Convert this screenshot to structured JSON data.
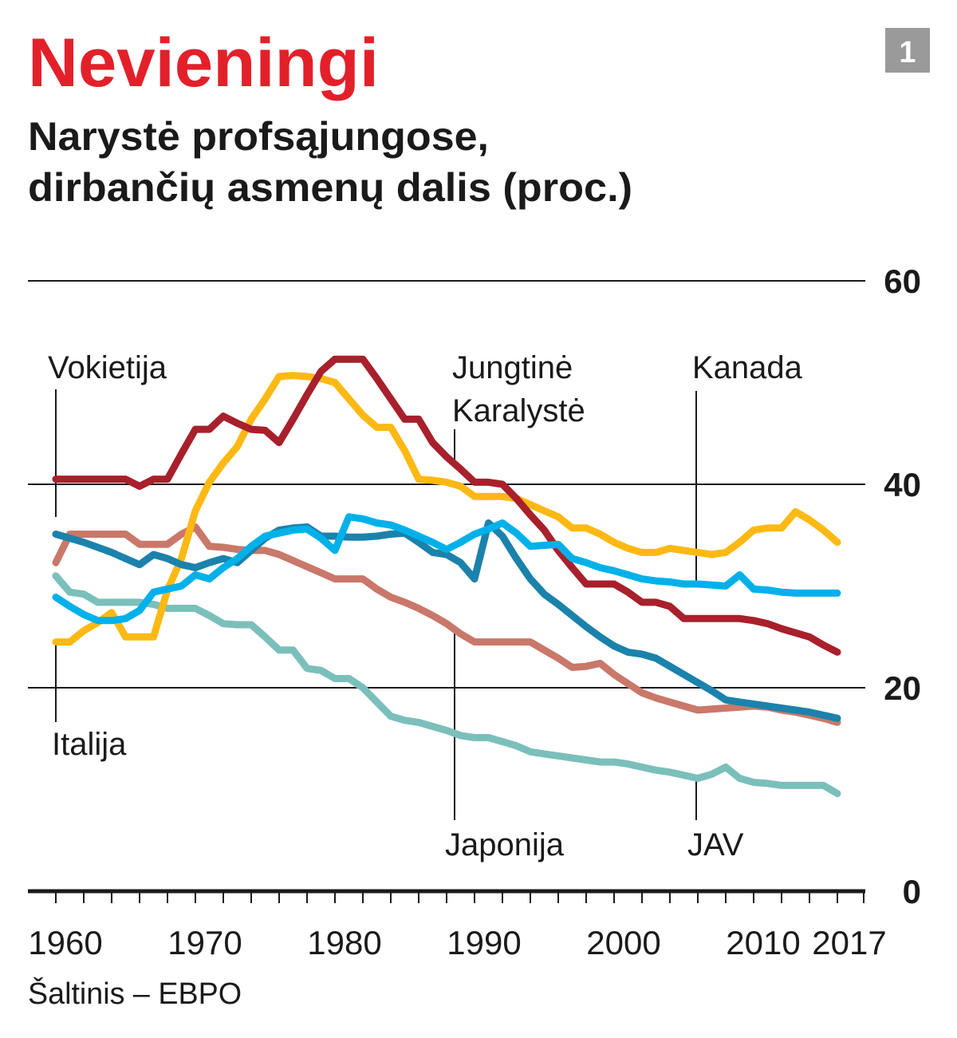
{
  "title": "Nevieningi",
  "subtitle_line1": "Narystė profsąjungose,",
  "subtitle_line2": "dirbančių asmenų dalis (proc.)",
  "badge": "1",
  "source": "Šaltinis – EBPO",
  "colors": {
    "title": "#e3202a",
    "badge_bg": "#9a9a9a"
  },
  "chart_data": {
    "type": "line",
    "title": "Narystė profsąjungose, dirbančių asmenų dalis (proc.)",
    "xlabel": "",
    "ylabel": "",
    "xlim": [
      1960,
      2017
    ],
    "ylim": [
      0,
      60
    ],
    "grid": true,
    "x_start": 1960,
    "x_tick_labels": [
      "1960",
      "1970",
      "1980",
      "1990",
      "2000",
      "2010",
      "2017"
    ],
    "y_tick_labels": [
      "60",
      "40",
      "20",
      "0"
    ],
    "y_ticks": [
      60,
      40,
      20,
      0
    ],
    "series": [
      {
        "name": "Jungtinė Karalystė",
        "label_lines": [
          "Jungtinė",
          "Karalystė"
        ],
        "color": "#a8202b",
        "values": [
          40.5,
          40.5,
          40.5,
          40.5,
          40.5,
          40.5,
          39.8,
          40.5,
          40.5,
          43.0,
          45.4,
          45.4,
          46.7,
          46.0,
          45.4,
          45.3,
          44.1,
          46.4,
          48.8,
          51.1,
          52.3,
          52.3,
          52.3,
          50.4,
          48.4,
          46.4,
          46.4,
          44.1,
          42.7,
          41.5,
          40.2,
          40.2,
          40.0,
          38.6,
          37.0,
          35.5,
          33.5,
          31.8,
          30.2,
          30.2,
          30.2,
          29.4,
          28.4,
          28.4,
          28.0,
          26.8,
          26.8,
          26.8,
          26.8,
          26.8,
          26.6,
          26.3,
          25.8,
          25.4,
          25.0,
          24.2,
          23.5
        ]
      },
      {
        "name": "Italija",
        "label_lines": [
          "Italija"
        ],
        "color": "#fdb913",
        "values": [
          24.5,
          24.5,
          25.6,
          26.4,
          27.4,
          25.0,
          25.0,
          25.0,
          29.6,
          32.7,
          37.4,
          40.2,
          42.1,
          43.7,
          46.4,
          48.4,
          50.6,
          50.7,
          50.6,
          50.4,
          50.0,
          48.4,
          46.8,
          45.6,
          45.6,
          43.3,
          40.5,
          40.4,
          40.2,
          39.8,
          38.8,
          38.8,
          38.8,
          38.6,
          38.0,
          37.4,
          36.8,
          35.7,
          35.7,
          35.1,
          34.3,
          33.7,
          33.3,
          33.3,
          33.7,
          33.5,
          33.3,
          33.1,
          33.3,
          34.3,
          35.5,
          35.7,
          35.7,
          37.3,
          36.5,
          35.5,
          34.3
        ]
      },
      {
        "name": "Vokietija",
        "label_lines": [
          "Vokietija"
        ],
        "color": "#1b82ab",
        "values": [
          35.1,
          34.7,
          34.3,
          33.8,
          33.3,
          32.7,
          32.1,
          33.1,
          32.7,
          32.1,
          31.8,
          32.3,
          32.7,
          32.3,
          33.5,
          34.7,
          35.5,
          35.7,
          35.8,
          34.9,
          34.9,
          34.8,
          34.8,
          34.9,
          35.1,
          35.2,
          34.3,
          33.3,
          33.1,
          32.3,
          30.7,
          36.2,
          34.9,
          32.7,
          30.7,
          29.2,
          28.2,
          27.1,
          26.0,
          25.0,
          24.1,
          23.5,
          23.3,
          22.9,
          22.1,
          21.3,
          20.5,
          19.7,
          18.8,
          18.6,
          18.4,
          18.2,
          18.0,
          17.8,
          17.6,
          17.3,
          17.0
        ]
      },
      {
        "name": "Kanada",
        "label_lines": [
          "Kanada"
        ],
        "color": "#00b1e9",
        "values": [
          28.9,
          28.0,
          27.2,
          26.6,
          26.6,
          26.8,
          27.6,
          29.4,
          29.7,
          30.0,
          31.1,
          30.7,
          31.8,
          32.7,
          33.9,
          34.9,
          35.2,
          35.5,
          35.6,
          34.7,
          33.5,
          36.8,
          36.6,
          36.2,
          36.0,
          35.5,
          34.9,
          34.3,
          33.6,
          34.3,
          35.1,
          35.6,
          36.2,
          35.2,
          33.9,
          34.0,
          34.1,
          32.7,
          32.3,
          31.8,
          31.5,
          31.1,
          30.7,
          30.5,
          30.4,
          30.2,
          30.2,
          30.1,
          30.0,
          31.1,
          29.7,
          29.6,
          29.4,
          29.3,
          29.3,
          29.3,
          29.3
        ]
      },
      {
        "name": "Japonija",
        "label_lines": [
          "Japonija"
        ],
        "color": "#c9786a",
        "values": [
          32.3,
          35.1,
          35.1,
          35.1,
          35.1,
          35.1,
          34.1,
          34.1,
          34.1,
          35.1,
          35.8,
          33.9,
          33.8,
          33.6,
          33.5,
          33.5,
          33.1,
          32.5,
          31.9,
          31.3,
          30.7,
          30.7,
          30.7,
          29.7,
          28.9,
          28.4,
          27.8,
          27.1,
          26.3,
          25.3,
          24.5,
          24.5,
          24.5,
          24.5,
          24.5,
          23.7,
          22.9,
          22.0,
          22.1,
          22.4,
          21.3,
          20.4,
          19.5,
          19.0,
          18.6,
          18.2,
          17.8,
          17.9,
          18.0,
          18.1,
          18.2,
          18.1,
          17.8,
          17.6,
          17.3,
          17.0,
          16.6
        ]
      },
      {
        "name": "JAV",
        "label_lines": [
          "JAV"
        ],
        "color": "#7bbfbb",
        "values": [
          31.0,
          29.4,
          29.2,
          28.4,
          28.4,
          28.4,
          28.4,
          28.2,
          27.8,
          27.8,
          27.8,
          27.1,
          26.3,
          26.2,
          26.2,
          25.0,
          23.7,
          23.7,
          21.9,
          21.7,
          20.9,
          20.9,
          20.0,
          18.6,
          17.2,
          16.8,
          16.6,
          16.2,
          15.8,
          15.3,
          15.1,
          15.1,
          14.7,
          14.3,
          13.7,
          13.5,
          13.3,
          13.1,
          12.9,
          12.7,
          12.7,
          12.5,
          12.2,
          11.9,
          11.7,
          11.4,
          11.1,
          11.5,
          12.2,
          11.1,
          10.7,
          10.6,
          10.4,
          10.4,
          10.4,
          10.4,
          9.6
        ]
      }
    ]
  }
}
